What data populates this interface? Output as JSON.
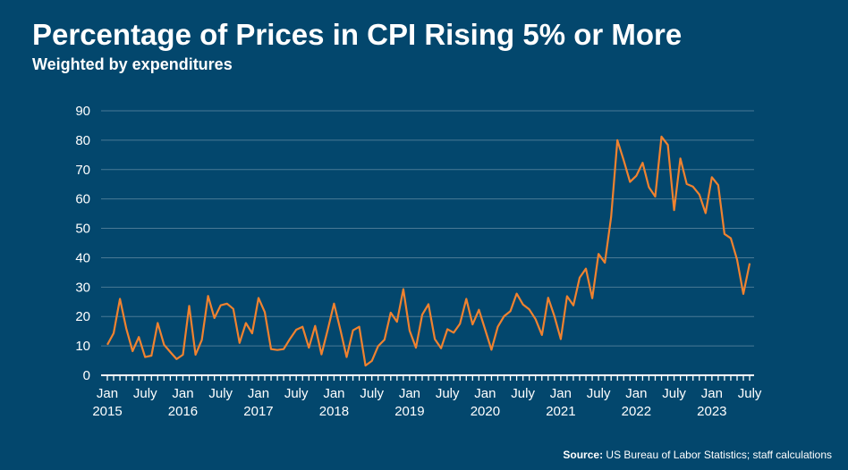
{
  "title": "Percentage of Prices in CPI Rising 5% or More",
  "subtitle": "Weighted by expenditures",
  "source": {
    "label": "Source:",
    "text": "US Bureau of Labor Statistics; staff calculations"
  },
  "colors": {
    "background": "#03476d",
    "line": "#f0822f",
    "grid": "#4a7a96",
    "text": "#ffffff"
  },
  "chart_data": {
    "type": "line",
    "title": "Percentage of Prices in CPI Rising 5% or More",
    "subtitle": "Weighted by expenditures",
    "xlabel": "",
    "ylabel": "",
    "ylim": [
      0,
      90
    ],
    "y_ticks": [
      0,
      10,
      20,
      30,
      40,
      50,
      60,
      70,
      80,
      90
    ],
    "x_start": "2015-01",
    "x_end": "2023-07",
    "x_frequency": "monthly",
    "x_ticks": [
      {
        "date": "2015-01",
        "label": "Jan",
        "year": "2015"
      },
      {
        "date": "2015-07",
        "label": "July"
      },
      {
        "date": "2016-01",
        "label": "Jan",
        "year": "2016"
      },
      {
        "date": "2016-07",
        "label": "July"
      },
      {
        "date": "2017-01",
        "label": "Jan",
        "year": "2017"
      },
      {
        "date": "2017-07",
        "label": "July"
      },
      {
        "date": "2018-01",
        "label": "Jan",
        "year": "2018"
      },
      {
        "date": "2018-07",
        "label": "July"
      },
      {
        "date": "2019-01",
        "label": "Jan",
        "year": "2019"
      },
      {
        "date": "2019-07",
        "label": "July"
      },
      {
        "date": "2020-01",
        "label": "Jan",
        "year": "2020"
      },
      {
        "date": "2020-07",
        "label": "July"
      },
      {
        "date": "2021-01",
        "label": "Jan",
        "year": "2021"
      },
      {
        "date": "2021-07",
        "label": "July"
      },
      {
        "date": "2022-01",
        "label": "Jan",
        "year": "2022"
      },
      {
        "date": "2022-07",
        "label": "July"
      },
      {
        "date": "2023-01",
        "label": "Jan",
        "year": "2023"
      },
      {
        "date": "2023-07",
        "label": "July"
      }
    ],
    "grid": true,
    "legend": "none",
    "series": [
      {
        "values": [
          10.4,
          14.3,
          26,
          16,
          8.2,
          13,
          6.2,
          6.7,
          17.8,
          10.4,
          7.9,
          5.5,
          7,
          23.6,
          7,
          12,
          27,
          19.5,
          23.8,
          24.4,
          22.6,
          11,
          17.8,
          14.3,
          26.3,
          21.5,
          8.9,
          8.6,
          8.9,
          12.4,
          15.5,
          16.5,
          9.4,
          16.8,
          7.1,
          15.5,
          24.4,
          15.5,
          6.2,
          15.3,
          16.5,
          3.3,
          4.9,
          9.9,
          12.1,
          21.3,
          18.2,
          29.3,
          15.2,
          9.4,
          20.6,
          24.2,
          12.3,
          9.2,
          15.7,
          14.5,
          17.5,
          26,
          17.3,
          22.3,
          15.5,
          8.7,
          16.5,
          20.1,
          21.8,
          27.8,
          24.1,
          22.4,
          19.1,
          13.7,
          26.4,
          20.1,
          12.3,
          26.9,
          23.8,
          33.2,
          36.3,
          26.2,
          41.3,
          38.3,
          53.9,
          80,
          73.1,
          65.8,
          67.9,
          72.3,
          64,
          60.8,
          81.2,
          78.4,
          56.2,
          73.8,
          65.1,
          64.2,
          61.5,
          55.2,
          67.4,
          64.7,
          48.1,
          46.6,
          39.3,
          27.7,
          38.1
        ]
      }
    ]
  }
}
